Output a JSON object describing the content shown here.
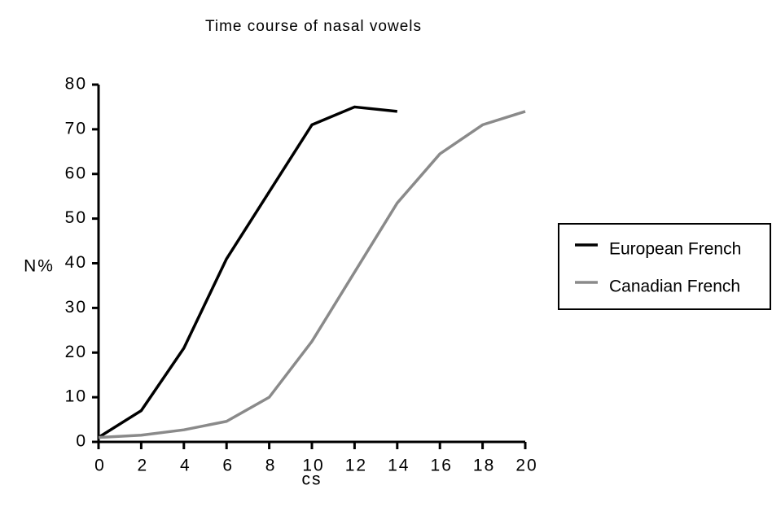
{
  "chart_data": {
    "type": "line",
    "title": "Time course of nasal vowels",
    "x_label": "cs",
    "y_label": "N%",
    "series": [
      {
        "name": "European French",
        "color": "#000000",
        "x": [
          0,
          2,
          4,
          6,
          8,
          10,
          12,
          14
        ],
        "values": [
          1,
          7,
          21,
          41,
          56,
          71,
          75,
          74
        ]
      },
      {
        "name": "Canadian French",
        "color": "#8a8a8a",
        "x": [
          0,
          2,
          4,
          6,
          8,
          10,
          12,
          14,
          16,
          18,
          20
        ],
        "values": [
          1,
          1.5,
          2.7,
          4.6,
          10,
          22.5,
          38,
          53.5,
          64.5,
          71,
          74
        ]
      }
    ],
    "xlim": [
      0,
      20
    ],
    "xticks": [
      0,
      2,
      4,
      6,
      8,
      10,
      12,
      14,
      16,
      18,
      20
    ],
    "ylim": [
      0,
      80
    ],
    "yticks": [
      0,
      10,
      20,
      30,
      40,
      50,
      60,
      70,
      80
    ],
    "grid": false,
    "legend": "right"
  }
}
